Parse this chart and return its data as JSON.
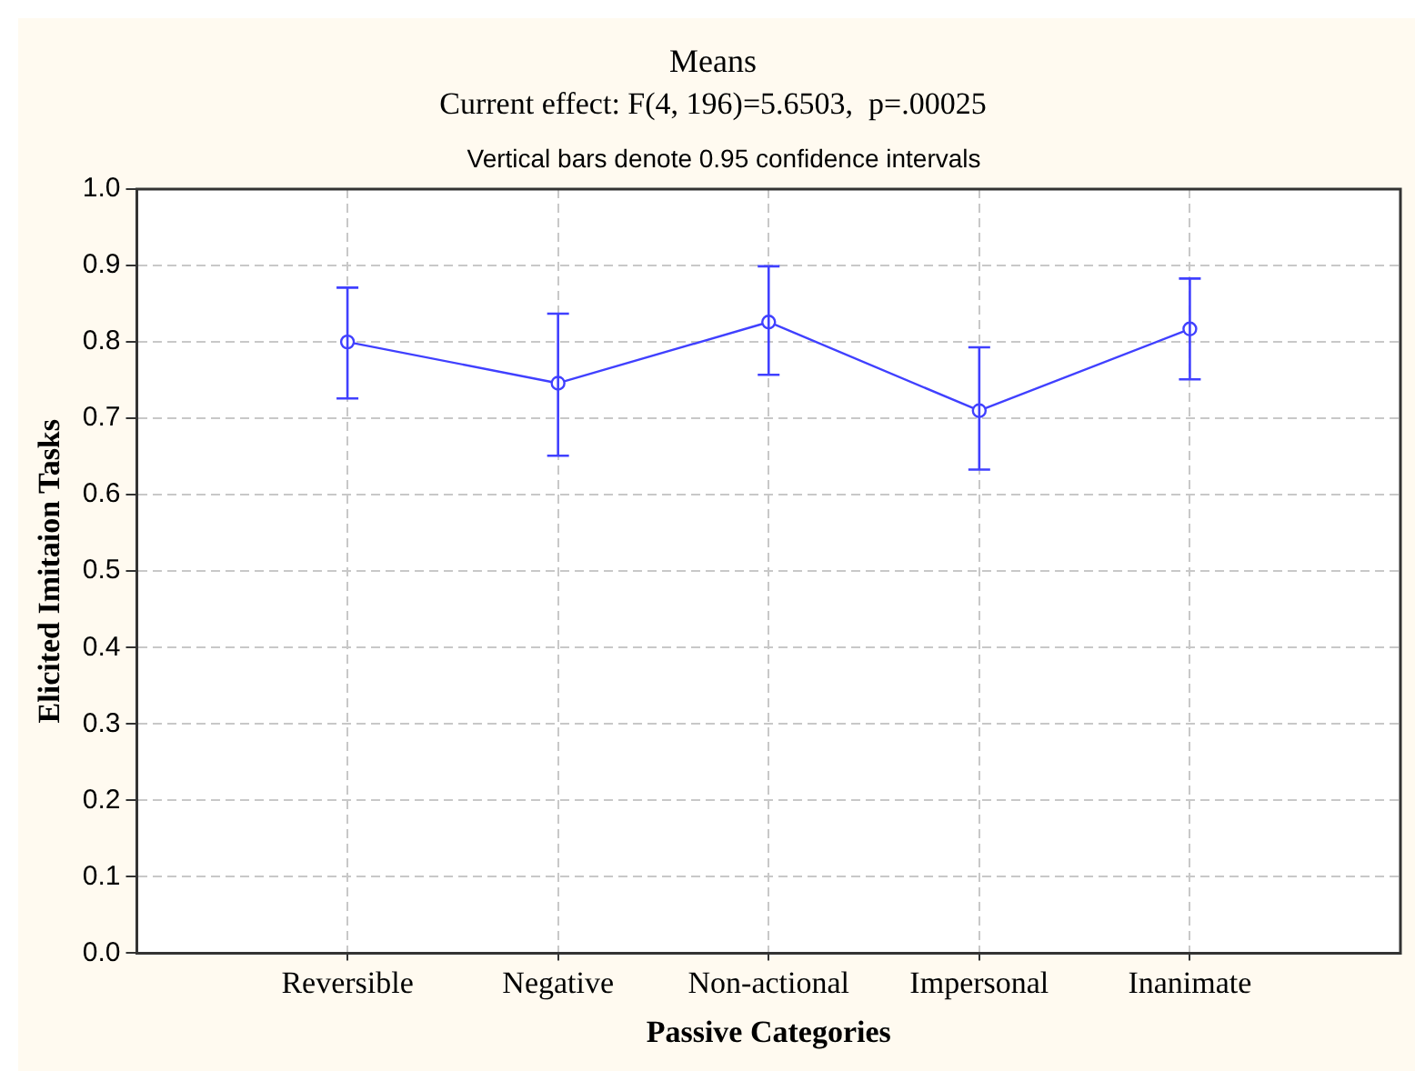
{
  "chart_data": {
    "type": "line",
    "title": "Means",
    "subtitle": "Current effect: F(4, 196)=5.6503,  p=.00025",
    "annotations": [
      "Vertical bars denote 0.95 confidence intervals"
    ],
    "xlabel": "Passive Categories",
    "ylabel": "Elicited Imitaion Tasks",
    "categories": [
      "Reversible",
      "Negative",
      "Non-actional",
      "Impersonal",
      "Inanimate"
    ],
    "series": [
      {
        "color": "#4040ff",
        "values": [
          0.8,
          0.746,
          0.826,
          0.71,
          0.817
        ],
        "errors": [
          [
            0.726,
            0.871
          ],
          [
            0.651,
            0.837
          ],
          [
            0.757,
            0.899
          ],
          [
            0.633,
            0.793
          ],
          [
            0.751,
            0.883
          ]
        ]
      }
    ],
    "ylim": [
      0,
      1
    ],
    "yticks": [
      {
        "value": 0,
        "label": "0.0"
      },
      0.1,
      0.2,
      0.3,
      0.4,
      0.5,
      0.6,
      0.7,
      0.8,
      0.9,
      {
        "value": 1,
        "label": "1.0"
      }
    ],
    "grid": true,
    "legend": false,
    "marker": "circle",
    "line_style": "solid"
  }
}
